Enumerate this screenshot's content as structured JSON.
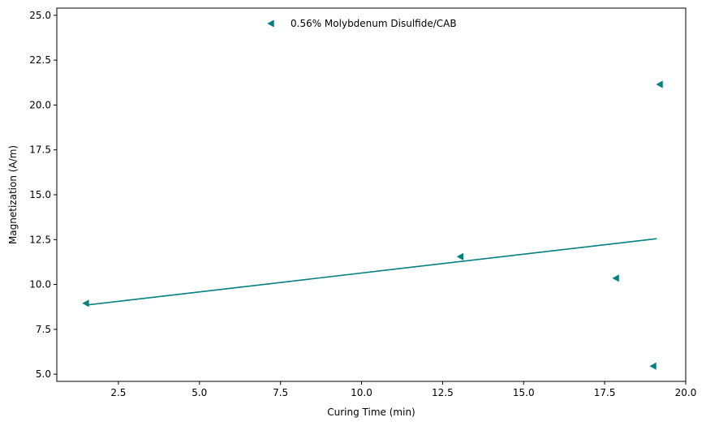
{
  "chart_data": {
    "type": "scatter",
    "title": "",
    "xlabel": "Curing Time (min)",
    "ylabel": "Magnetization (A/m)",
    "xlim": [
      0.6,
      20.0
    ],
    "ylim": [
      4.6,
      25.4
    ],
    "xticks": [
      2.5,
      5.0,
      7.5,
      10.0,
      12.5,
      15.0,
      17.5,
      20.0
    ],
    "xtick_labels": [
      "2.5",
      "5.0",
      "7.5",
      "10.0",
      "12.5",
      "15.0",
      "17.5",
      "20.0"
    ],
    "yticks": [
      5.0,
      7.5,
      10.0,
      12.5,
      15.0,
      17.5,
      20.0,
      22.5,
      25.0
    ],
    "ytick_labels": [
      "5.0",
      "7.5",
      "10.0",
      "12.5",
      "15.0",
      "17.5",
      "20.0",
      "22.5",
      "25.0"
    ],
    "grid": false,
    "legend_position": "top-center",
    "series": [
      {
        "name": "0.56% Molybdenum Disulfide/CAB",
        "color": "#008080",
        "marker": "triangle-left",
        "points": [
          {
            "x": 1.5,
            "y": 8.95
          },
          {
            "x": 13.05,
            "y": 11.55
          },
          {
            "x": 17.85,
            "y": 10.35
          },
          {
            "x": 19.0,
            "y": 5.45
          },
          {
            "x": 19.2,
            "y": 21.15
          }
        ],
        "trendline": {
          "x": [
            1.5,
            19.1
          ],
          "y": [
            8.85,
            12.55
          ]
        }
      }
    ]
  }
}
